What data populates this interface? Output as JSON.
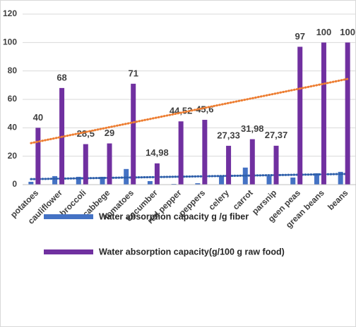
{
  "chart_data": {
    "type": "bar",
    "categories": [
      "potatoes",
      "cauliflower",
      "broccoli",
      "cabbege",
      "tomatoes",
      "cucumber",
      "red pepper",
      "peppers",
      "celery",
      "carrot",
      "parsnip",
      "geen peas",
      "grean beans",
      "beans"
    ],
    "series": [
      {
        "name": "Water absorption capacity g /g fiber",
        "color": "#4472c4",
        "trendline_color": "#2e5faa",
        "values": [
          2,
          6,
          5.5,
          5.5,
          11,
          2.5,
          0.5,
          1,
          6,
          12,
          6,
          5,
          8,
          9
        ]
      },
      {
        "name": "Water absorption capacity(g/100 g raw food)",
        "color": "#7030a0",
        "trendline_color": "#ed7d31",
        "values": [
          40,
          68,
          28.5,
          29,
          71,
          14.98,
          44.52,
          45.6,
          27.33,
          31.98,
          27.37,
          97,
          100,
          100
        ],
        "value_labels": [
          "40",
          "68",
          "28,5",
          "29",
          "71",
          "14,98",
          "44,52",
          "45,6",
          "27,33",
          "31,98",
          "27,37",
          "97",
          "100",
          "100"
        ]
      }
    ],
    "ylim": [
      0,
      120
    ],
    "yticks": [
      0,
      20,
      40,
      60,
      80,
      100,
      120
    ],
    "grid": true,
    "trendline": true
  }
}
